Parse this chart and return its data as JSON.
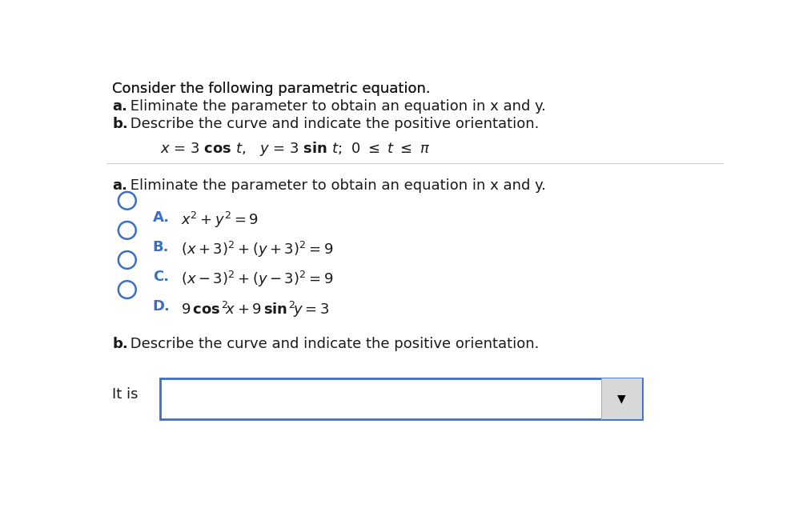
{
  "background_color": "#ffffff",
  "fig_width": 10.08,
  "fig_height": 6.6,
  "line1": "Consider the following parametric equation.",
  "line2_bold": "a.",
  "line2_rest": " Eliminate the parameter to obtain an equation in x and y.",
  "line3_bold": "b.",
  "line3_rest": " Describe the curve and indicate the positive orientation.",
  "section_a_label": "a.",
  "section_a_text": " Eliminate the parameter to obtain an equation in x and y.",
  "section_b_label": "b.",
  "section_b_text": " Describe the curve and indicate the positive orientation.",
  "it_is_label": "It is",
  "circle_color": "#3a6fc4",
  "text_color": "#1a1a1a",
  "divider_color": "#cccccc",
  "box_edge_color": "#3a6fc4",
  "arrow_bg_color": "#d8d8d8",
  "arrow_color": "#000000"
}
